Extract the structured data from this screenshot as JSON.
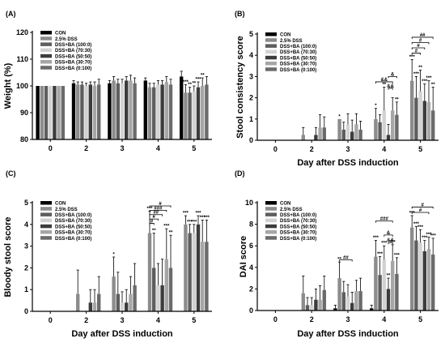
{
  "chart_data": [
    {
      "panel": "(A)",
      "type": "bar",
      "ylabel": "Weight (%)",
      "xlabel": "",
      "ylim": [
        80,
        120
      ],
      "yticks": [
        80,
        90,
        100,
        110,
        120
      ],
      "baseline": 80,
      "categories": [
        "0",
        "2",
        "3",
        "4",
        "5"
      ],
      "legend_placement": "top-left",
      "series": [
        {
          "name": "CON",
          "color": "#000000",
          "values": [
            100,
            101,
            101,
            102,
            103.5
          ],
          "errors": [
            0,
            1,
            1,
            1,
            2
          ]
        },
        {
          "name": "2.5% DSS",
          "color": "#8c8c8c",
          "values": [
            100,
            100.5,
            102,
            99.5,
            97.5
          ],
          "errors": [
            0,
            1,
            1.5,
            1.5,
            3
          ]
        },
        {
          "name": "DSS+BA (100:0)",
          "color": "#5e5e5e",
          "values": [
            100,
            100.5,
            101,
            99.5,
            97.5
          ],
          "errors": [
            0,
            1,
            1.5,
            1.5,
            2
          ]
        },
        {
          "name": "DSS+BA (70:30)",
          "color": "#d2d2d2",
          "values": [
            100,
            100,
            101,
            100.5,
            98
          ],
          "errors": [
            0,
            1,
            1.5,
            1.5,
            2
          ]
        },
        {
          "name": "DSS+BA (50:50)",
          "color": "#3c3c3c",
          "values": [
            100,
            100.5,
            102,
            100.5,
            99.5
          ],
          "errors": [
            0,
            1,
            1.5,
            1.5,
            2
          ]
        },
        {
          "name": "DSS+BA (30:70)",
          "color": "#a6a6a6",
          "values": [
            100,
            100,
            102,
            101.5,
            100
          ],
          "errors": [
            0,
            1.5,
            2,
            2,
            3
          ]
        },
        {
          "name": "DSS+BA (0:100)",
          "color": "#6b6b6b",
          "values": [
            100,
            100.5,
            101,
            100.5,
            100.5
          ],
          "errors": [
            0,
            2,
            2,
            2,
            3
          ]
        }
      ],
      "annotations": [
        {
          "category": 4,
          "series": 1,
          "text": "***"
        },
        {
          "category": 4,
          "series": 2,
          "text": "**"
        },
        {
          "category": 4,
          "series": 3,
          "text": "**"
        },
        {
          "category": 4,
          "series": 4,
          "text": "***"
        },
        {
          "category": 4,
          "series": 5,
          "text": "**"
        }
      ],
      "brackets": []
    },
    {
      "panel": "(B)",
      "type": "bar",
      "ylabel": "Stool consistency score",
      "xlabel": "Day after DSS induction",
      "ylim": [
        0,
        5
      ],
      "yticks": [
        0,
        1,
        2,
        3,
        4,
        5
      ],
      "baseline": 0,
      "categories": [
        "0",
        "2",
        "3",
        "4",
        "5"
      ],
      "legend_placement": "top-left",
      "series": [
        {
          "name": "CON",
          "color": "#000000",
          "values": [
            0,
            0,
            0,
            0,
            0
          ],
          "errors": [
            0,
            0,
            0,
            0,
            0
          ]
        },
        {
          "name": "2.5% DSS",
          "color": "#8c8c8c",
          "values": [
            0,
            0.25,
            1.0,
            1.0,
            2.8
          ],
          "errors": [
            0,
            0.35,
            0,
            0.5,
            1.0
          ]
        },
        {
          "name": "DSS+BA (100:0)",
          "color": "#5e5e5e",
          "values": [
            0,
            0,
            0.5,
            0.85,
            2.0
          ],
          "errors": [
            0,
            0,
            0.35,
            0.35,
            1.0
          ]
        },
        {
          "name": "DSS+BA (70:30)",
          "color": "#d2d2d2",
          "values": [
            0,
            0,
            0.75,
            1.4,
            2.3
          ],
          "errors": [
            0,
            0,
            0.5,
            1.1,
            1.0
          ]
        },
        {
          "name": "DSS+BA (50:50)",
          "color": "#3c3c3c",
          "values": [
            0,
            0.25,
            0.4,
            0.25,
            1.85
          ],
          "errors": [
            0,
            0.35,
            0.55,
            0.5,
            0.8
          ]
        },
        {
          "name": "DSS+BA (30:70)",
          "color": "#a6a6a6",
          "values": [
            0,
            0.6,
            0.75,
            1.4,
            1.8
          ],
          "errors": [
            0,
            0.6,
            0.5,
            0.6,
            1.0
          ]
        },
        {
          "name": "DSS+BA (0:100)",
          "color": "#6b6b6b",
          "values": [
            0,
            0.6,
            0.5,
            1.2,
            1.4
          ],
          "errors": [
            0,
            0.5,
            0.4,
            0.6,
            1.1
          ]
        }
      ],
      "annotations": [
        {
          "category": 2,
          "series": 1,
          "text": "*"
        },
        {
          "category": 3,
          "series": 1,
          "text": "*"
        },
        {
          "category": 3,
          "series": 3,
          "text": "**"
        },
        {
          "category": 3,
          "series": 6,
          "text": "**"
        },
        {
          "category": 4,
          "series": 1,
          "text": "***"
        },
        {
          "category": 4,
          "series": 2,
          "text": "***"
        },
        {
          "category": 4,
          "series": 3,
          "text": "**"
        },
        {
          "category": 4,
          "series": 4,
          "text": "***"
        },
        {
          "category": 4,
          "series": 5,
          "text": "***"
        },
        {
          "category": 4,
          "series": 6,
          "text": "**"
        }
      ],
      "brackets": [
        {
          "category": 3,
          "from": 1,
          "to": 5,
          "y": 2.75,
          "text": "&&"
        },
        {
          "category": 3,
          "from": 4,
          "to": 5,
          "y": 2.45,
          "text": "&&"
        },
        {
          "category": 3,
          "from": 4,
          "to": 6,
          "y": 3.0,
          "text": "&"
        },
        {
          "category": 4,
          "from": 1,
          "to": 6,
          "y": 4.85,
          "text": "##"
        },
        {
          "category": 4,
          "from": 1,
          "to": 5,
          "y": 4.6,
          "text": "#"
        },
        {
          "category": 4,
          "from": 1,
          "to": 4,
          "y": 4.35,
          "text": "#"
        },
        {
          "category": 4,
          "from": 1,
          "to": 3,
          "y": 4.1,
          "text": "#"
        }
      ]
    },
    {
      "panel": "(C)",
      "type": "bar",
      "ylabel": "Bloody stool score",
      "xlabel": "Day after DSS induction",
      "ylim": [
        0,
        5
      ],
      "yticks": [
        0,
        1,
        2,
        3,
        4,
        5
      ],
      "baseline": 0,
      "categories": [
        "0",
        "2",
        "3",
        "4",
        "5"
      ],
      "legend_placement": "top-left",
      "series": [
        {
          "name": "CON",
          "color": "#000000",
          "values": [
            0,
            0,
            0,
            0,
            0
          ],
          "errors": [
            0,
            0,
            0,
            0,
            0
          ]
        },
        {
          "name": "2.5% DSS",
          "color": "#8c8c8c",
          "values": [
            0,
            0.8,
            1.6,
            3.6,
            4.0
          ],
          "errors": [
            0,
            1.1,
            0.9,
            1.0,
            0.4
          ]
        },
        {
          "name": "DSS+BA (100:0)",
          "color": "#5e5e5e",
          "values": [
            0,
            0,
            0.8,
            2.0,
            3.6
          ],
          "errors": [
            0,
            0,
            1.0,
            1.6,
            0.4
          ]
        },
        {
          "name": "DSS+BA (70:30)",
          "color": "#d2d2d2",
          "values": [
            0,
            0,
            0.4,
            1.2,
            3.6
          ],
          "errors": [
            0,
            0,
            0.5,
            1.0,
            0.4
          ]
        },
        {
          "name": "DSS+BA (50:50)",
          "color": "#3c3c3c",
          "values": [
            0,
            0.4,
            0.4,
            1.2,
            4.0
          ],
          "errors": [
            0,
            0.6,
            0.6,
            1.2,
            0.4
          ]
        },
        {
          "name": "DSS+BA (30:70)",
          "color": "#a6a6a6",
          "values": [
            0,
            0.4,
            0.8,
            2.4,
            3.2
          ],
          "errors": [
            0,
            0.6,
            0.8,
            1.4,
            1.0
          ]
        },
        {
          "name": "DSS+BA (0:100)",
          "color": "#6b6b6b",
          "values": [
            0,
            0.8,
            1.2,
            2.0,
            3.2
          ],
          "errors": [
            0,
            0.8,
            1.0,
            1.5,
            1.0
          ]
        }
      ],
      "annotations": [
        {
          "category": 2,
          "series": 1,
          "text": "*"
        },
        {
          "category": 3,
          "series": 1,
          "text": "***"
        },
        {
          "category": 3,
          "series": 2,
          "text": "**"
        },
        {
          "category": 3,
          "series": 5,
          "text": "***"
        },
        {
          "category": 3,
          "series": 6,
          "text": "**"
        },
        {
          "category": 4,
          "series": 1,
          "text": "***"
        },
        {
          "category": 4,
          "series": 2,
          "text": "***"
        },
        {
          "category": 4,
          "series": 3,
          "text": "***"
        },
        {
          "category": 4,
          "series": 4,
          "text": "***"
        },
        {
          "category": 4,
          "series": 5,
          "text": "***"
        },
        {
          "category": 4,
          "series": 6,
          "text": "***"
        }
      ],
      "brackets": [
        {
          "category": 3,
          "from": 1,
          "to": 6,
          "y": 4.85,
          "text": "#"
        },
        {
          "category": 3,
          "from": 1,
          "to": 5,
          "y": 4.65,
          "text": "###"
        },
        {
          "category": 3,
          "from": 1,
          "to": 4,
          "y": 4.45,
          "text": "##"
        },
        {
          "category": 3,
          "from": 1,
          "to": 3,
          "y": 4.25,
          "text": "#"
        },
        {
          "category": 3,
          "from": 1,
          "to": 2,
          "y": 4.05,
          "text": "#"
        }
      ]
    },
    {
      "panel": "(D)",
      "type": "bar",
      "ylabel": "DAI score",
      "xlabel": "Day after DSS induction",
      "ylim": [
        0,
        10
      ],
      "yticks": [
        0,
        2,
        4,
        6,
        8,
        10
      ],
      "baseline": 0,
      "categories": [
        "0",
        "2",
        "3",
        "4",
        "5"
      ],
      "legend_placement": "top-left",
      "series": [
        {
          "name": "CON",
          "color": "#000000",
          "values": [
            0,
            0,
            0.2,
            0.2,
            0
          ],
          "errors": [
            0,
            0,
            0.3,
            0.3,
            0
          ]
        },
        {
          "name": "2.5% DSS",
          "color": "#8c8c8c",
          "values": [
            0,
            1.6,
            3.0,
            5.0,
            7.7
          ],
          "errors": [
            0,
            1.6,
            1.5,
            1.5,
            1.1
          ]
        },
        {
          "name": "DSS+BA (100:0)",
          "color": "#5e5e5e",
          "values": [
            0,
            0.5,
            1.7,
            3.3,
            6.5
          ],
          "errors": [
            0,
            0.7,
            1.0,
            1.7,
            1.3
          ]
        },
        {
          "name": "DSS+BA (70:30)",
          "color": "#d2d2d2",
          "values": [
            0,
            0.5,
            1.3,
            4.7,
            6.3
          ],
          "errors": [
            0,
            0.7,
            1.1,
            1.3,
            1.2
          ]
        },
        {
          "name": "DSS+BA (50:50)",
          "color": "#3c3c3c",
          "values": [
            0,
            1.0,
            0.7,
            2.0,
            5.5
          ],
          "errors": [
            0,
            1.0,
            1.0,
            1.0,
            1.0
          ]
        },
        {
          "name": "DSS+BA (30:70)",
          "color": "#a6a6a6",
          "values": [
            0,
            1.0,
            1.8,
            4.6,
            5.7
          ],
          "errors": [
            0,
            1.3,
            1.0,
            1.5,
            1.1
          ]
        },
        {
          "name": "DSS+BA (0:100)",
          "color": "#6b6b6b",
          "values": [
            0,
            1.9,
            1.8,
            3.4,
            5.2
          ],
          "errors": [
            0,
            1.3,
            1.2,
            1.5,
            1.5
          ]
        }
      ],
      "annotations": [
        {
          "category": 2,
          "series": 1,
          "text": "**"
        },
        {
          "category": 3,
          "series": 1,
          "text": "***"
        },
        {
          "category": 3,
          "series": 2,
          "text": "***"
        },
        {
          "category": 3,
          "series": 3,
          "text": "***"
        },
        {
          "category": 3,
          "series": 4,
          "text": "**"
        },
        {
          "category": 3,
          "series": 5,
          "text": "***"
        },
        {
          "category": 3,
          "series": 6,
          "text": "***"
        },
        {
          "category": 4,
          "series": 1,
          "text": "***"
        },
        {
          "category": 4,
          "series": 2,
          "text": "***"
        },
        {
          "category": 4,
          "series": 3,
          "text": "***"
        },
        {
          "category": 4,
          "series": 4,
          "text": "***"
        },
        {
          "category": 4,
          "series": 5,
          "text": "***"
        },
        {
          "category": 4,
          "series": 6,
          "text": "***"
        }
      ],
      "brackets": [
        {
          "category": 2,
          "from": 1,
          "to": 4,
          "y": 4.7,
          "text": "##"
        },
        {
          "category": 3,
          "from": 1,
          "to": 5,
          "y": 8.3,
          "text": "###"
        },
        {
          "category": 3,
          "from": 4,
          "to": 5,
          "y": 6.3,
          "text": "&&"
        },
        {
          "category": 3,
          "from": 3,
          "to": 5,
          "y": 7.0,
          "text": "&"
        },
        {
          "category": 4,
          "from": 1,
          "to": 6,
          "y": 9.6,
          "text": "#"
        },
        {
          "category": 4,
          "from": 1,
          "to": 5,
          "y": 9.1,
          "text": "#"
        }
      ]
    }
  ]
}
